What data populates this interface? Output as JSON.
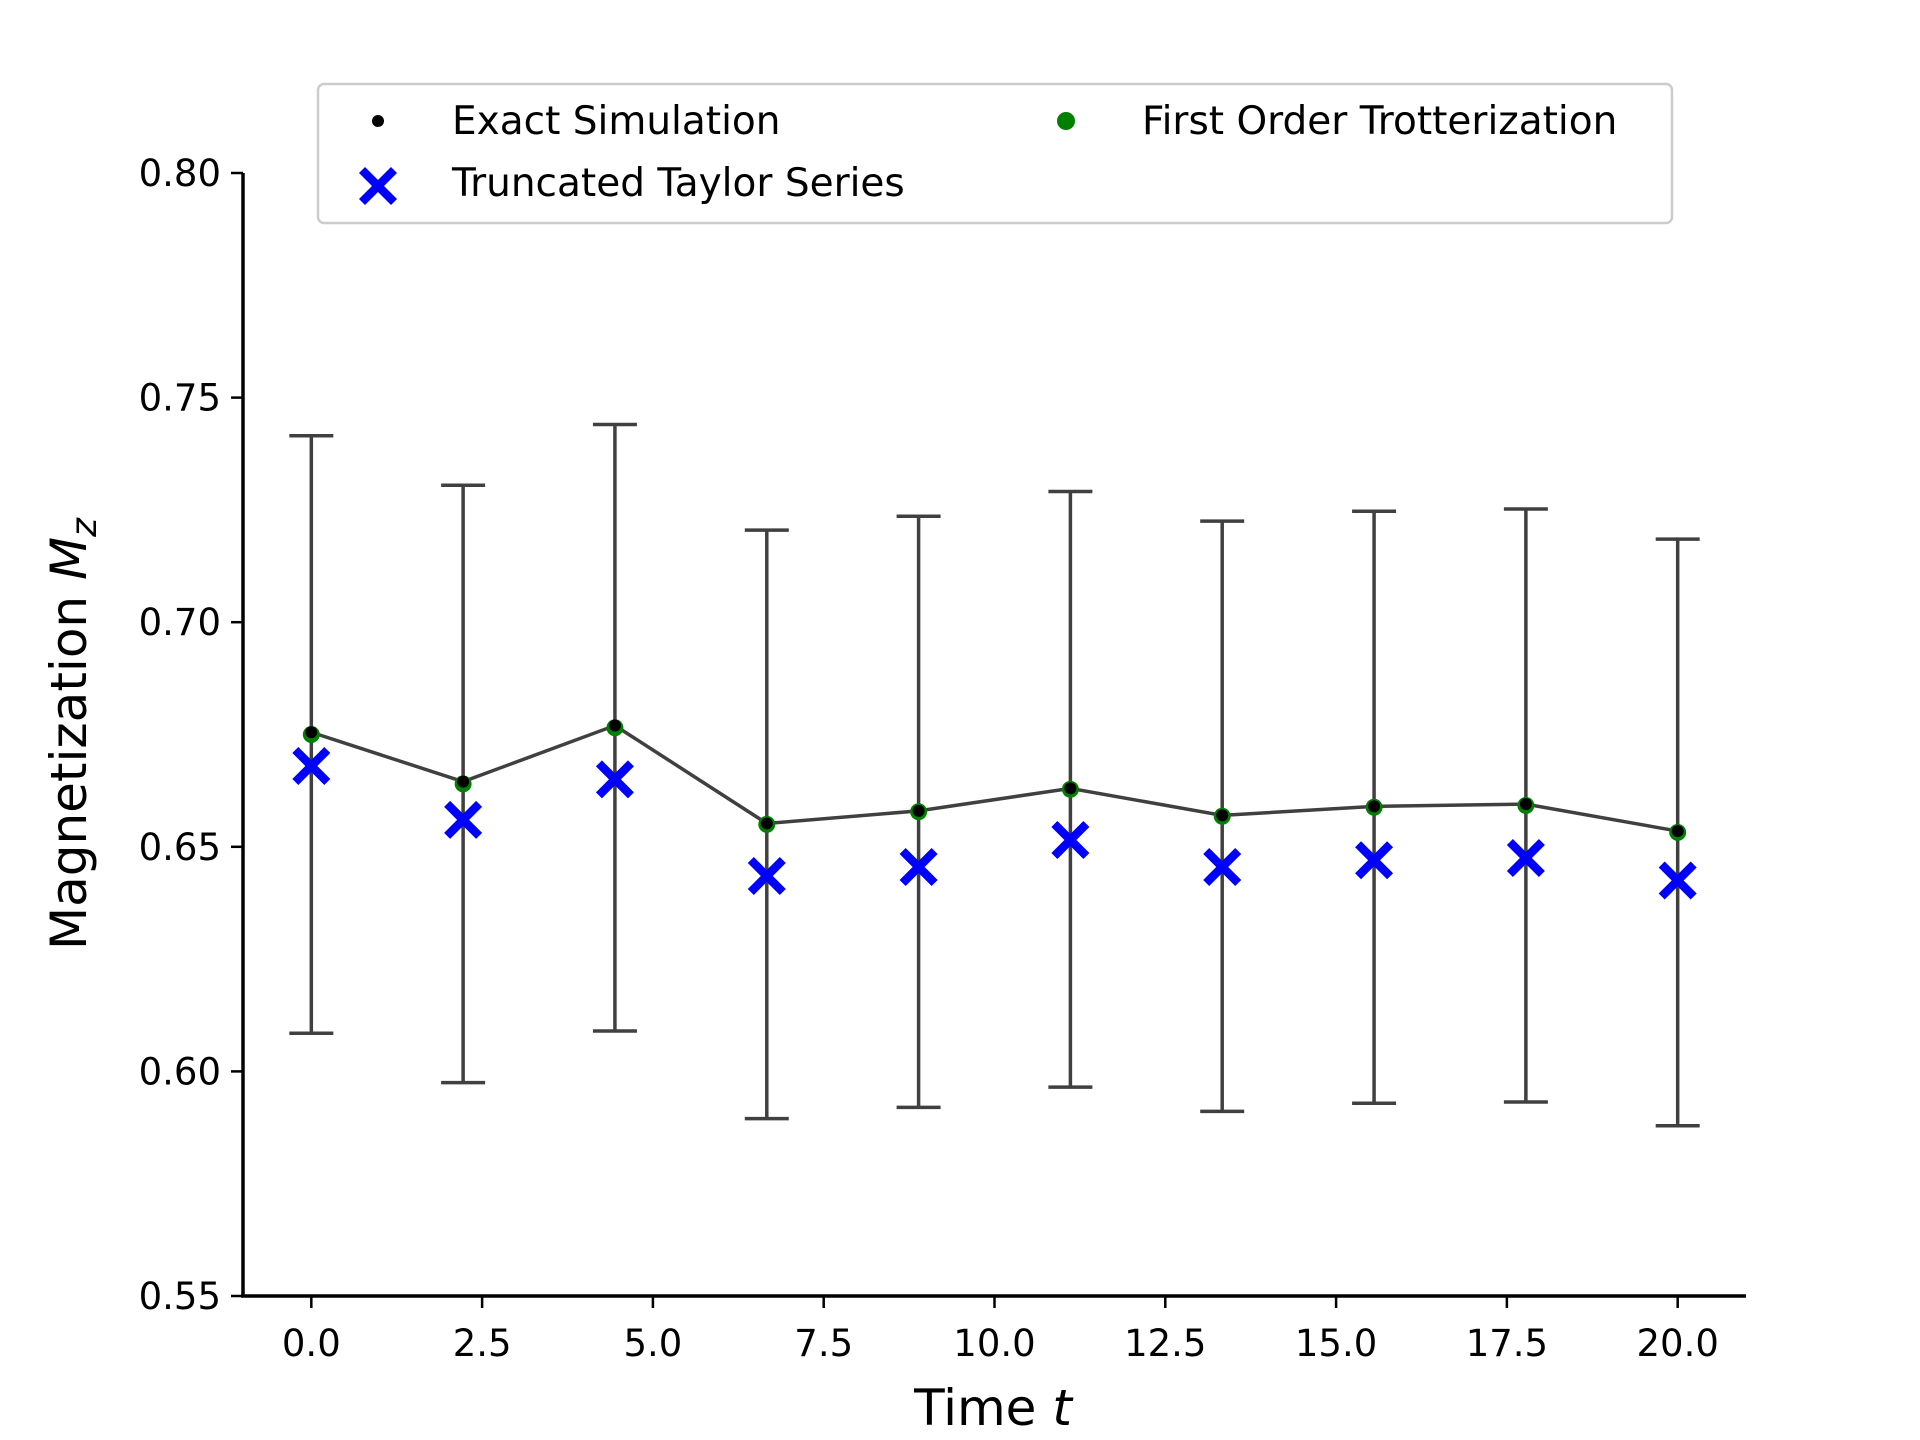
{
  "chart_data": {
    "type": "scatter",
    "xlabel": {
      "text": "Time ",
      "var": "t"
    },
    "ylabel": {
      "text": "Magnetization ",
      "var": "M",
      "sub": "z"
    },
    "xlim": [
      -1.0,
      21.0
    ],
    "ylim": [
      0.55,
      0.8
    ],
    "xticks": [
      0.0,
      2.5,
      5.0,
      7.5,
      10.0,
      12.5,
      15.0,
      17.5,
      20.0
    ],
    "xtick_labels": [
      "0.0",
      "2.5",
      "5.0",
      "7.5",
      "10.0",
      "12.5",
      "15.0",
      "17.5",
      "20.0"
    ],
    "yticks": [
      0.55,
      0.6,
      0.65,
      0.7,
      0.75,
      0.8
    ],
    "ytick_labels": [
      "0.55",
      "0.60",
      "0.65",
      "0.70",
      "0.75",
      "0.80"
    ],
    "grid": false,
    "legend_position": "top-center",
    "x": [
      0.0,
      2.222,
      4.444,
      6.667,
      8.889,
      11.111,
      13.333,
      15.556,
      17.778,
      20.0
    ],
    "series": [
      {
        "name": "Exact Simulation",
        "marker": "dot",
        "color": "#000000",
        "y": [
          0.6755,
          0.6645,
          0.677,
          0.6552,
          0.658,
          0.663,
          0.657,
          0.659,
          0.6595,
          0.6535
        ]
      },
      {
        "name": "First Order Trotterization",
        "marker": "dot",
        "color": "#008000",
        "y": [
          0.675,
          0.664,
          0.6765,
          0.655,
          0.6578,
          0.6628,
          0.6568,
          0.6588,
          0.6592,
          0.6532
        ],
        "error": [
          0.0665,
          0.0665,
          0.0675,
          0.0655,
          0.0658,
          0.0663,
          0.0657,
          0.0659,
          0.066,
          0.0653
        ]
      },
      {
        "name": "Truncated Taylor Series",
        "marker": "x",
        "color": "#0000ff",
        "y": [
          0.668,
          0.656,
          0.665,
          0.6435,
          0.6455,
          0.6515,
          0.6455,
          0.647,
          0.6475,
          0.6425
        ]
      }
    ],
    "line_color": "#404040"
  },
  "legend": {
    "items": [
      {
        "label": "Exact Simulation",
        "marker": "dot",
        "color": "#000000"
      },
      {
        "label": "First Order Trotterization",
        "marker": "dot",
        "color": "#008000"
      },
      {
        "label": "Truncated Taylor Series",
        "marker": "x",
        "color": "#0000ff"
      }
    ]
  }
}
